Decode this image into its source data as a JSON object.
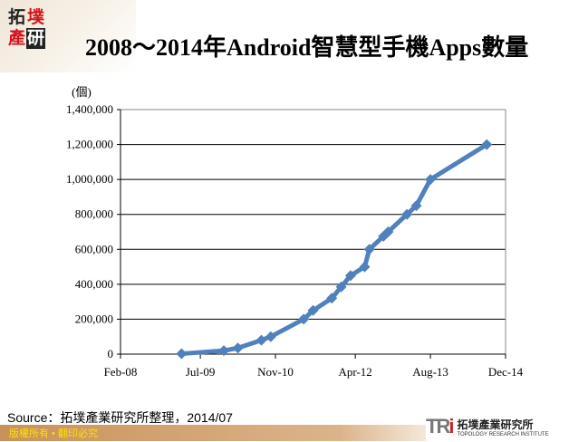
{
  "header": {
    "logo_chars": [
      "拓",
      "墣",
      "產",
      "研"
    ],
    "title": "2008～2014年Android智慧型手機Apps數量"
  },
  "footer": {
    "source": "Source：拓墣產業研究所整理，2014/07",
    "copyright": "版權所有 • 翻印必究",
    "brand_mark": "TRi",
    "brand_cn": "拓墣產業研究所",
    "brand_en": "TOPOLOGY RESEARCH INSTITUTE"
  },
  "colors": {
    "series": "#4f81bd",
    "logo_red": "#d4141a",
    "bar": "#c8925a"
  },
  "chart_data": {
    "type": "line",
    "title": "2008～2014年Android智慧型手機Apps數量",
    "ylabel": "(個)",
    "xlabel": "",
    "xlim": [
      "2008-02",
      "2014-12"
    ],
    "ylim": [
      0,
      1400000
    ],
    "grid": true,
    "x_ticks": [
      {
        "date": "2008-02",
        "label": "Feb-08"
      },
      {
        "date": "2009-07",
        "label": "Jul-09"
      },
      {
        "date": "2010-11",
        "label": "Nov-10"
      },
      {
        "date": "2012-04",
        "label": "Apr-12"
      },
      {
        "date": "2013-08",
        "label": "Aug-13"
      },
      {
        "date": "2014-12",
        "label": "Dec-14"
      }
    ],
    "y_ticks": [
      {
        "v": 0,
        "label": "0"
      },
      {
        "v": 200000,
        "label": "200,000"
      },
      {
        "v": 400000,
        "label": "400,000"
      },
      {
        "v": 600000,
        "label": "600,000"
      },
      {
        "v": 800000,
        "label": "800,000"
      },
      {
        "v": 1000000,
        "label": "1,000,000"
      },
      {
        "v": 1200000,
        "label": "1,200,000"
      },
      {
        "v": 1400000,
        "label": "1,400,000"
      }
    ],
    "series": [
      {
        "marker": "diamond",
        "points": [
          {
            "x": "2009-03",
            "y": 2300
          },
          {
            "x": "2009-12",
            "y": 20000
          },
          {
            "x": "2010-03",
            "y": 35000
          },
          {
            "x": "2010-08",
            "y": 80000
          },
          {
            "x": "2010-10",
            "y": 100000
          },
          {
            "x": "2011-05",
            "y": 200000
          },
          {
            "x": "2011-07",
            "y": 250000
          },
          {
            "x": "2011-11",
            "y": 320000
          },
          {
            "x": "2012-01",
            "y": 385000
          },
          {
            "x": "2012-03",
            "y": 450000
          },
          {
            "x": "2012-06",
            "y": 500000
          },
          {
            "x": "2012-07",
            "y": 600000
          },
          {
            "x": "2012-10",
            "y": 675000
          },
          {
            "x": "2012-11",
            "y": 700000
          },
          {
            "x": "2013-03",
            "y": 800000
          },
          {
            "x": "2013-05",
            "y": 850000
          },
          {
            "x": "2013-08",
            "y": 1000000
          },
          {
            "x": "2014-08",
            "y": 1200000
          }
        ]
      }
    ]
  }
}
